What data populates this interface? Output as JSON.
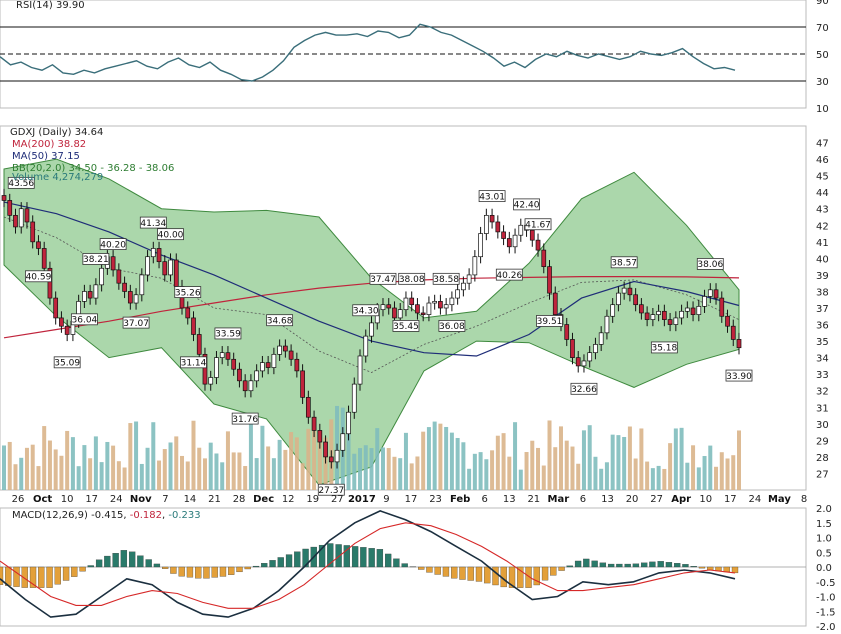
{
  "chart_data": {
    "type": "stock",
    "symbol": "GDXJ",
    "main": {
      "title": "GDXJ (Daily) 34.64",
      "legend": [
        {
          "label": "MA(200) 38.82",
          "color": "#c0243c"
        },
        {
          "label": "MA(50) 37.15",
          "color": "#1f2d78"
        },
        {
          "label": "BB(20,2.0) 34.50 - 36.28 - 38.06",
          "color": "#2e7d32"
        },
        {
          "label": "Volume 4,274,279",
          "color": "#2a7a7a"
        }
      ],
      "ylim": [
        26,
        48
      ],
      "yticks": [
        27,
        28,
        29,
        30,
        31,
        32,
        33,
        34,
        35,
        36,
        37,
        38,
        39,
        40,
        41,
        42,
        43,
        44,
        45,
        46,
        47
      ],
      "close": [
        43.5,
        42.6,
        41.9,
        43.0,
        42.2,
        41.0,
        40.6,
        39.4,
        37.6,
        36.4,
        35.9,
        35.4,
        36.2,
        37.4,
        38.0,
        37.6,
        38.4,
        39.4,
        40.1,
        39.3,
        38.5,
        38.0,
        37.3,
        37.8,
        39.0,
        40.1,
        40.6,
        39.8,
        39.0,
        39.9,
        38.3,
        37.0,
        36.4,
        35.4,
        34.2,
        32.4,
        32.8,
        34.0,
        34.3,
        33.9,
        33.3,
        32.6,
        32.0,
        32.6,
        33.2,
        33.7,
        33.4,
        34.2,
        34.7,
        34.4,
        33.9,
        33.2,
        31.6,
        30.4,
        29.6,
        28.9,
        28.0,
        27.7,
        28.4,
        29.4,
        30.7,
        32.4,
        34.1,
        35.3,
        36.1,
        36.9,
        37.2,
        37.0,
        36.4,
        36.9,
        37.6,
        37.2,
        36.7,
        36.6,
        37.3,
        37.4,
        37.0,
        37.2,
        37.6,
        38.1,
        38.5,
        39.0,
        40.1,
        41.5,
        42.6,
        42.2,
        41.6,
        41.2,
        40.7,
        41.4,
        42.0,
        41.7,
        41.1,
        40.5,
        39.5,
        37.9,
        36.6,
        36.0,
        35.1,
        34.0,
        33.5,
        33.8,
        34.3,
        34.8,
        35.5,
        36.5,
        37.2,
        37.9,
        38.2,
        37.8,
        37.2,
        36.7,
        36.3,
        36.6,
        36.8,
        36.3,
        36.0,
        36.4,
        36.8,
        37.0,
        36.6,
        37.1,
        37.7,
        38.1,
        37.6,
        36.5,
        35.9,
        35.1,
        34.6
      ],
      "ma200": [
        35.2,
        35.7,
        36.2,
        36.8,
        37.3,
        37.8,
        38.2,
        38.5,
        38.7,
        38.8,
        38.85,
        38.9,
        38.9,
        38.88,
        38.82
      ],
      "ma50": [
        43.4,
        42.7,
        41.6,
        40.2,
        39.0,
        37.6,
        36.2,
        35.0,
        34.3,
        34.1,
        35.4,
        37.6,
        38.6,
        38.0,
        37.15
      ],
      "bb_upper": [
        45.4,
        46.0,
        44.8,
        43.0,
        42.8,
        42.9,
        42.5,
        38.8,
        36.4,
        36.8,
        39.7,
        43.6,
        45.2,
        42.0,
        38.1
      ],
      "bb_lower": [
        39.6,
        36.5,
        34.0,
        34.6,
        31.2,
        30.3,
        26.3,
        27.4,
        33.2,
        35.0,
        34.9,
        33.5,
        32.2,
        33.6,
        34.5
      ],
      "annotations": [
        {
          "i": 3,
          "text": "43.56",
          "pos": "above"
        },
        {
          "i": 6,
          "text": "40.59",
          "pos": "below"
        },
        {
          "i": 11,
          "text": "35.09",
          "pos": "below"
        },
        {
          "i": 14,
          "text": "36.04",
          "pos": "below"
        },
        {
          "i": 16,
          "text": "38.21",
          "pos": "above"
        },
        {
          "i": 19,
          "text": "40.20",
          "pos": "above"
        },
        {
          "i": 23,
          "text": "37.07",
          "pos": "below"
        },
        {
          "i": 26,
          "text": "41.34",
          "pos": "above"
        },
        {
          "i": 29,
          "text": "40.00",
          "pos": "above"
        },
        {
          "i": 32,
          "text": "35.26",
          "pos": "above"
        },
        {
          "i": 33,
          "text": "31.14",
          "pos": "below"
        },
        {
          "i": 39,
          "text": "33.59",
          "pos": "above"
        },
        {
          "i": 42,
          "text": "31.76",
          "pos": "below"
        },
        {
          "i": 48,
          "text": "34.68",
          "pos": "above"
        },
        {
          "i": 57,
          "text": "27.37",
          "pos": "below"
        },
        {
          "i": 63,
          "text": "34.30",
          "pos": "above"
        },
        {
          "i": 66,
          "text": "37.47",
          "pos": "above"
        },
        {
          "i": 71,
          "text": "38.08",
          "pos": "above"
        },
        {
          "i": 70,
          "text": "35.45",
          "pos": "below"
        },
        {
          "i": 77,
          "text": "38.58",
          "pos": "above"
        },
        {
          "i": 78,
          "text": "36.08",
          "pos": "below"
        },
        {
          "i": 85,
          "text": "43.01",
          "pos": "above"
        },
        {
          "i": 88,
          "text": "40.26",
          "pos": "below"
        },
        {
          "i": 91,
          "text": "42.40",
          "pos": "above"
        },
        {
          "i": 93,
          "text": "41.67",
          "pos": "above"
        },
        {
          "i": 95,
          "text": "39.51",
          "pos": "below"
        },
        {
          "i": 101,
          "text": "32.66",
          "pos": "below"
        },
        {
          "i": 108,
          "text": "38.57",
          "pos": "above"
        },
        {
          "i": 115,
          "text": "35.18",
          "pos": "below"
        },
        {
          "i": 123,
          "text": "38.06",
          "pos": "above"
        },
        {
          "i": 128,
          "text": "33.90",
          "pos": "below"
        }
      ]
    },
    "rsi": {
      "label": "RSI(14) 39.90",
      "ylim": [
        10,
        90
      ],
      "yticks": [
        10,
        30,
        50,
        70,
        90
      ],
      "levels": [
        30,
        50,
        70
      ],
      "values": [
        48,
        42,
        44,
        40,
        38,
        42,
        36,
        35,
        38,
        36,
        39,
        41,
        43,
        45,
        41,
        39,
        44,
        47,
        42,
        40,
        44,
        38,
        35,
        31,
        30,
        33,
        38,
        45,
        55,
        60,
        64,
        66,
        64,
        64,
        65,
        63,
        67,
        66,
        62,
        64,
        72,
        70,
        66,
        64,
        60,
        56,
        52,
        47,
        41,
        44,
        40,
        46,
        50,
        48,
        52,
        49,
        47,
        50,
        48,
        46,
        48,
        52,
        50,
        49,
        51,
        54,
        48,
        43,
        39,
        40,
        38
      ]
    },
    "macd": {
      "label_prefix": "MACD(12,26,9)",
      "macd_value": "-0.415",
      "signal_value": "-0.182",
      "hist_value": "-0.233",
      "ylim": [
        -2.0,
        2.0
      ],
      "yticks": [
        "2.0",
        "1.5",
        "1.0",
        "0.5",
        "0.0",
        "-0.5",
        "-1.0",
        "-1.5",
        "-2.0"
      ],
      "macd": [
        -0.4,
        -1.1,
        -1.7,
        -1.6,
        -1.0,
        -0.4,
        -0.6,
        -1.2,
        -1.6,
        -1.7,
        -1.4,
        -0.8,
        0.0,
        0.9,
        1.5,
        1.9,
        1.6,
        1.2,
        0.7,
        0.2,
        -0.5,
        -1.1,
        -1.0,
        -0.5,
        -0.6,
        -0.5,
        -0.2,
        -0.1,
        -0.2,
        -0.4
      ],
      "signal": [
        0.2,
        -0.4,
        -1.0,
        -1.3,
        -1.3,
        -1.0,
        -0.8,
        -0.9,
        -1.2,
        -1.4,
        -1.4,
        -1.1,
        -0.6,
        0.1,
        0.8,
        1.3,
        1.5,
        1.4,
        1.1,
        0.7,
        0.2,
        -0.4,
        -0.8,
        -0.8,
        -0.7,
        -0.6,
        -0.4,
        -0.2,
        -0.1,
        -0.2
      ]
    },
    "x_ticks": [
      "26",
      "Oct",
      "10",
      "17",
      "24",
      "Nov",
      "7",
      "14",
      "21",
      "28",
      "Dec",
      "12",
      "19",
      "27",
      "2017",
      "9",
      "17",
      "23",
      "Feb",
      "6",
      "13",
      "21",
      "Mar",
      "6",
      "13",
      "20",
      "27",
      "Apr",
      "10",
      "17",
      "24",
      "May",
      "8"
    ],
    "x_ticks_bold": [
      "Oct",
      "Nov",
      "Dec",
      "2017",
      "Feb",
      "Mar",
      "Apr",
      "May"
    ]
  }
}
